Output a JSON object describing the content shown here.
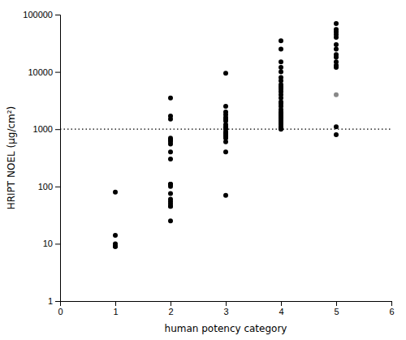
{
  "chart_data": {
    "type": "scatter",
    "xlabel": "human potency category",
    "ylabel": "HRIPT NOEL (µg/cm²)",
    "log": "y",
    "xlim": [
      0,
      6
    ],
    "ylim": [
      1,
      100000
    ],
    "xticks": [
      0,
      1,
      2,
      3,
      4,
      5,
      6
    ],
    "yticks": [
      1,
      10,
      100,
      1000,
      10000,
      100000
    ],
    "marker": "circle",
    "series": [
      {
        "color": "#000000",
        "x": [
          1,
          1,
          1,
          1,
          1
        ],
        "values": [
          14,
          10,
          9,
          9,
          80
        ]
      },
      {
        "color": "#000000",
        "x": [
          2,
          2,
          2,
          2,
          2,
          2,
          2,
          2,
          2,
          2,
          2,
          2,
          2,
          2,
          2,
          2,
          2,
          2,
          2,
          2
        ],
        "values": [
          3500,
          1700,
          1500,
          700,
          650,
          650,
          600,
          550,
          400,
          300,
          110,
          110,
          100,
          75,
          60,
          55,
          50,
          45,
          45,
          25
        ]
      },
      {
        "color": "#000000",
        "x": [
          3,
          3,
          3,
          3,
          3,
          3,
          3,
          3,
          3,
          3,
          3,
          3,
          3,
          3,
          3,
          3,
          3,
          3,
          3
        ],
        "values": [
          9500,
          2500,
          2000,
          1800,
          1600,
          1500,
          1400,
          1200,
          1100,
          1050,
          1000,
          900,
          850,
          800,
          750,
          700,
          600,
          400,
          70
        ]
      },
      {
        "color": "#000000",
        "x": [
          4,
          4,
          4,
          4,
          4,
          4,
          4,
          4,
          4,
          4,
          4,
          4,
          4,
          4,
          4,
          4,
          4,
          4,
          4,
          4,
          4,
          4,
          4,
          4,
          4,
          4,
          4,
          4,
          4
        ],
        "values": [
          35000,
          25000,
          15000,
          12000,
          10000,
          8000,
          7000,
          6000,
          5500,
          5000,
          4500,
          4000,
          3500,
          3000,
          2800,
          2500,
          2200,
          2000,
          1900,
          1800,
          1700,
          1600,
          1500,
          1400,
          1300,
          1200,
          1100,
          1050,
          1000
        ]
      },
      {
        "color": "#000000",
        "x": [
          5,
          5,
          5,
          5,
          5,
          5,
          5,
          5,
          5,
          5,
          5,
          5,
          5,
          5
        ],
        "values": [
          70000,
          55000,
          50000,
          45000,
          40000,
          30000,
          25000,
          20000,
          18000,
          15000,
          13000,
          12000,
          1100,
          800
        ]
      },
      {
        "color": "#888888",
        "x": [
          5
        ],
        "values": [
          4000
        ]
      }
    ],
    "annotations": [
      {
        "type": "hline",
        "y": 1000,
        "line_style": "dotted",
        "color": "#000000"
      }
    ]
  }
}
